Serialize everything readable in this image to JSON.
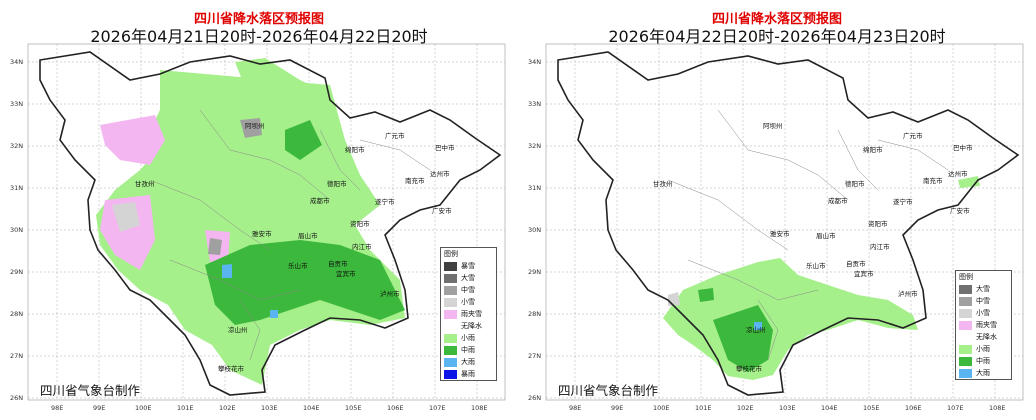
{
  "left": {
    "title": "四川省降水落区预报图",
    "subtitle": "2026年04月21日20时-2026年04月22日20时",
    "maker": "四川省气象台制作",
    "legend_title": "图例",
    "legend": [
      {
        "label": "暴雪",
        "color": "#404040"
      },
      {
        "label": "大雪",
        "color": "#707070"
      },
      {
        "label": "中雪",
        "color": "#a0a0a0"
      },
      {
        "label": "小雪",
        "color": "#d4d4d4"
      },
      {
        "label": "雨夹雪",
        "color": "#f4b6f0"
      },
      {
        "label": "无降水",
        "color": "#ffffff"
      },
      {
        "label": "小雨",
        "color": "#a6f08c"
      },
      {
        "label": "中雨",
        "color": "#3cb83c"
      },
      {
        "label": "大雨",
        "color": "#5ab4f0"
      },
      {
        "label": "暴雨",
        "color": "#0a14e6"
      }
    ]
  },
  "right": {
    "title": "四川省降水落区预报图",
    "subtitle": "2026年04月22日20时-2026年04月23日20时",
    "maker": "四川省气象台制作",
    "legend_title": "图例",
    "legend": [
      {
        "label": "大雪",
        "color": "#707070"
      },
      {
        "label": "中雪",
        "color": "#a0a0a0"
      },
      {
        "label": "小雪",
        "color": "#d4d4d4"
      },
      {
        "label": "雨夹雪",
        "color": "#f4b6f0"
      },
      {
        "label": "无降水",
        "color": "#ffffff"
      },
      {
        "label": "小雨",
        "color": "#a6f08c"
      },
      {
        "label": "中雨",
        "color": "#3cb83c"
      },
      {
        "label": "大雨",
        "color": "#5ab4f0"
      }
    ]
  },
  "lat_labels": [
    "34N",
    "33N",
    "32N",
    "31N",
    "30N",
    "29N",
    "28N",
    "27N",
    "26N"
  ],
  "lon_labels": [
    "98E",
    "99E",
    "100E",
    "101E",
    "102E",
    "103E",
    "104E",
    "105E",
    "106E",
    "107E",
    "108E"
  ],
  "cities": [
    "阿坝州",
    "广元市",
    "巴中市",
    "绵阳市",
    "甘孜州",
    "德阳市",
    "南充市",
    "达州市",
    "成都市",
    "遂宁市",
    "广安市",
    "雅安市",
    "眉山市",
    "资阳市",
    "内江市",
    "乐山市",
    "自贡市",
    "宜宾市",
    "泸州市",
    "凉山州",
    "攀枝花市"
  ]
}
